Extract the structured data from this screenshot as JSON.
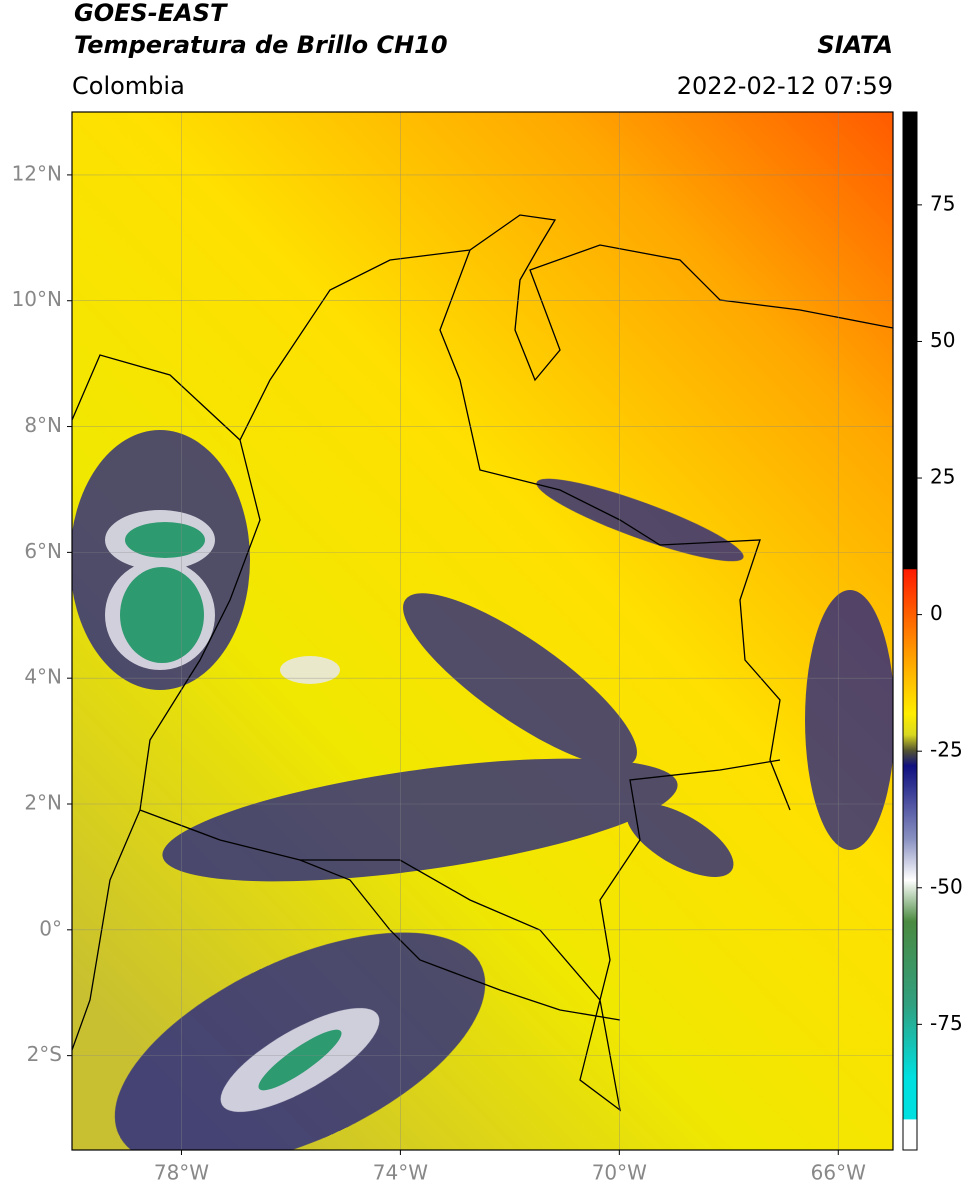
{
  "header": {
    "satellite": "GOES-EAST",
    "product": "Temperatura de Brillo CH10",
    "region": "Colombia",
    "source": "SIATA",
    "datetime": "2022-02-12 07:59"
  },
  "map": {
    "xlim": [
      -80,
      -65
    ],
    "ylim": [
      -3.5,
      13
    ],
    "xticks": [
      {
        "value": -78,
        "label": "78°W"
      },
      {
        "value": -74,
        "label": "74°W"
      },
      {
        "value": -70,
        "label": "70°W"
      },
      {
        "value": -66,
        "label": "66°W"
      }
    ],
    "yticks": [
      {
        "value": 12,
        "label": "12°N"
      },
      {
        "value": 10,
        "label": "10°N"
      },
      {
        "value": 8,
        "label": "8°N"
      },
      {
        "value": 6,
        "label": "6°N"
      },
      {
        "value": 4,
        "label": "4°N"
      },
      {
        "value": 2,
        "label": "2°N"
      },
      {
        "value": 0,
        "label": "0°"
      },
      {
        "value": -2,
        "label": "2°S"
      }
    ],
    "grid": true
  },
  "colorbar": {
    "vlim": [
      -98,
      92
    ],
    "ticks": [
      75,
      50,
      25,
      0,
      -25,
      -50,
      -75
    ]
  }
}
